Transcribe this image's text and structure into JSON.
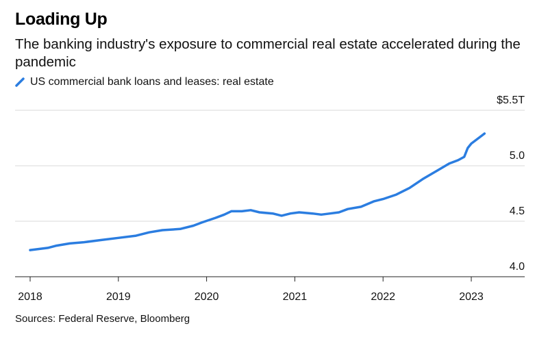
{
  "chart_data": {
    "type": "line",
    "title": "Loading Up",
    "subtitle": "The banking industry's exposure to commercial real estate accelerated during the pandemic",
    "series": [
      {
        "name": "US commercial bank loans and leases: real estate",
        "color": "#2b7de0",
        "x": [
          2018.0,
          2018.1,
          2018.2,
          2018.3,
          2018.45,
          2018.6,
          2018.8,
          2019.0,
          2019.2,
          2019.35,
          2019.5,
          2019.7,
          2019.85,
          2019.95,
          2020.1,
          2020.2,
          2020.28,
          2020.4,
          2020.5,
          2020.6,
          2020.75,
          2020.85,
          2020.95,
          2021.05,
          2021.2,
          2021.3,
          2021.4,
          2021.5,
          2021.6,
          2021.75,
          2021.9,
          2022.0,
          2022.15,
          2022.3,
          2022.45,
          2022.6,
          2022.75,
          2022.85,
          2022.92,
          2022.96,
          2023.0,
          2023.1,
          2023.15
        ],
        "y": [
          4.24,
          4.25,
          4.26,
          4.28,
          4.3,
          4.31,
          4.33,
          4.35,
          4.37,
          4.4,
          4.42,
          4.43,
          4.46,
          4.49,
          4.53,
          4.56,
          4.59,
          4.59,
          4.6,
          4.58,
          4.57,
          4.55,
          4.57,
          4.58,
          4.57,
          4.56,
          4.57,
          4.58,
          4.61,
          4.63,
          4.68,
          4.7,
          4.74,
          4.8,
          4.88,
          4.95,
          5.02,
          5.05,
          5.08,
          5.16,
          5.2,
          5.26,
          5.29
        ]
      }
    ],
    "x_ticks": [
      "2018",
      "2019",
      "2020",
      "2021",
      "2022",
      "2023"
    ],
    "xlim": [
      2017.97,
      2023.6
    ],
    "y_ticks": [
      "4.0",
      "4.5",
      "5.0",
      "$5.5T"
    ],
    "ylim": [
      4.0,
      5.5
    ],
    "grid": true,
    "legend_position": "top-left"
  },
  "source": "Sources: Federal Reserve, Bloomberg"
}
